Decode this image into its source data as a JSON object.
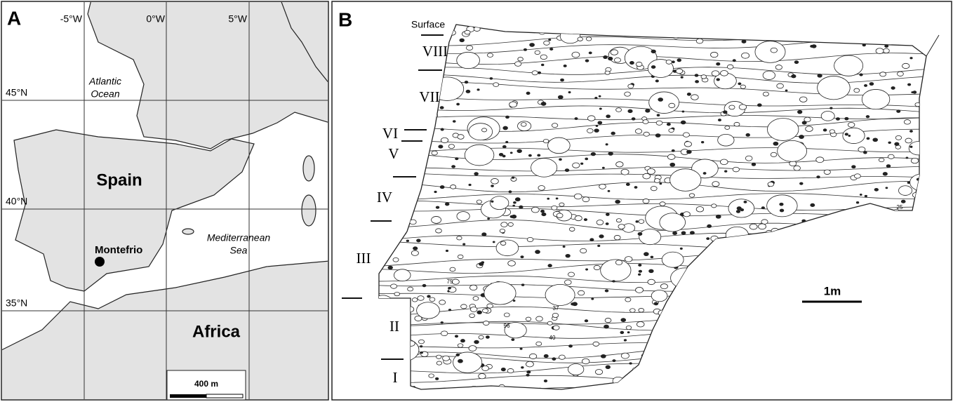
{
  "panel_a": {
    "label": "A",
    "longitude_labels": [
      "-5°W",
      "0°W",
      "5°W"
    ],
    "latitude_labels": [
      "45°N",
      "40°N",
      "35°N"
    ],
    "ocean_label": [
      "Atlantic",
      "Ocean"
    ],
    "country_labels": [
      "Spain",
      "Africa"
    ],
    "site_label": "Montefrio",
    "sea_label": [
      "Mediterranean",
      "Sea"
    ],
    "scale_bar": "400 m"
  },
  "panel_b": {
    "label": "B",
    "surface_label": "Surface",
    "layers": [
      "VIII",
      "VII",
      "VI",
      "V",
      "IV",
      "III",
      "II",
      "I"
    ],
    "scale_bar": "1m",
    "feature_numbers": [
      "75",
      "37",
      "96",
      "40",
      "25"
    ]
  }
}
